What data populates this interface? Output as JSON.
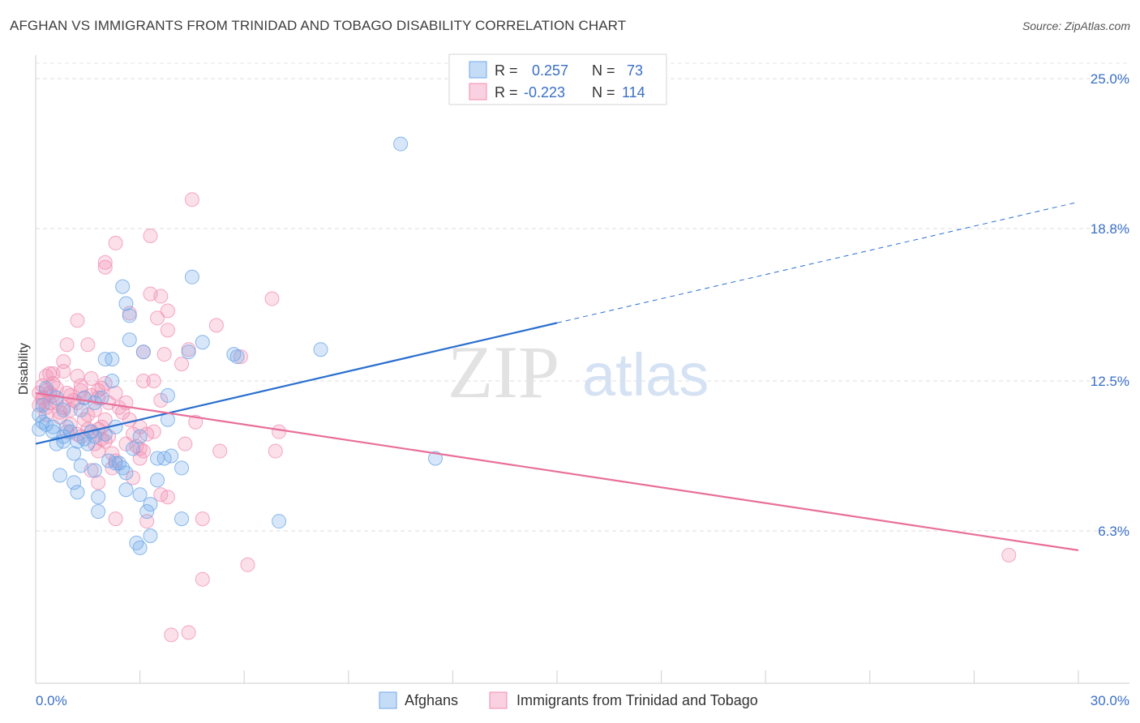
{
  "title": "AFGHAN VS IMMIGRANTS FROM TRINIDAD AND TOBAGO DISABILITY CORRELATION CHART",
  "source": "Source: ZipAtlas.com",
  "watermark": {
    "zip": "ZIP",
    "atlas": "atlas"
  },
  "legend": {
    "r_label": "R =",
    "n_label": "N =",
    "rows": [
      {
        "r": "0.257",
        "n": "73",
        "color": "#6ea8e8"
      },
      {
        "r": "-0.223",
        "n": "114",
        "color": "#f28cb1"
      }
    ]
  },
  "chart_data": {
    "type": "scatter",
    "title": "AFGHAN VS IMMIGRANTS FROM TRINIDAD AND TOBAGO DISABILITY CORRELATION CHART",
    "xlabel": "",
    "ylabel": "Disability",
    "xlim": [
      0,
      30
    ],
    "ylim": [
      0,
      25
    ],
    "x_tick_labels": [
      "0.0%",
      "30.0%"
    ],
    "y_ticks": [
      6.3,
      12.5,
      18.8,
      25.0
    ],
    "y_tick_labels": [
      "6.3%",
      "12.5%",
      "18.8%",
      "25.0%"
    ],
    "grid": true,
    "legend_position": "top-center",
    "series": [
      {
        "name": "Afghans",
        "color": "#6ea8e8",
        "line_color": "#2a6fcf",
        "r": 0.257,
        "n": 73,
        "trend": {
          "x0": 0,
          "y0": 9.9,
          "x1": 15,
          "y1": 14.9,
          "dash_to_x": 30,
          "dash_to_y": 19.9
        },
        "points": [
          [
            10.5,
            22.3
          ],
          [
            4.5,
            16.8
          ],
          [
            2.5,
            16.4
          ],
          [
            2.6,
            15.7
          ],
          [
            2.7,
            15.2
          ],
          [
            2.7,
            14.2
          ],
          [
            4.8,
            14.1
          ],
          [
            3.1,
            13.7
          ],
          [
            4.4,
            13.7
          ],
          [
            8.2,
            13.8
          ],
          [
            5.7,
            13.6
          ],
          [
            5.8,
            13.5
          ],
          [
            2.0,
            13.4
          ],
          [
            2.2,
            13.4
          ],
          [
            2.2,
            12.5
          ],
          [
            0.3,
            12.2
          ],
          [
            3.8,
            11.9
          ],
          [
            0.6,
            11.8
          ],
          [
            1.4,
            11.8
          ],
          [
            1.9,
            11.8
          ],
          [
            1.7,
            11.6
          ],
          [
            0.2,
            11.5
          ],
          [
            0.8,
            11.3
          ],
          [
            1.3,
            11.3
          ],
          [
            0.1,
            11.1
          ],
          [
            3.8,
            10.9
          ],
          [
            0.2,
            10.8
          ],
          [
            0.5,
            10.6
          ],
          [
            2.3,
            10.6
          ],
          [
            0.5,
            10.4
          ],
          [
            1.0,
            10.4
          ],
          [
            1.6,
            10.4
          ],
          [
            0.1,
            10.5
          ],
          [
            0.8,
            10.2
          ],
          [
            1.7,
            10.2
          ],
          [
            0.8,
            10.0
          ],
          [
            1.2,
            10.0
          ],
          [
            0.6,
            9.9
          ],
          [
            1.5,
            9.9
          ],
          [
            3.0,
            10.2
          ],
          [
            2.8,
            9.7
          ],
          [
            3.5,
            9.3
          ],
          [
            3.7,
            9.3
          ],
          [
            11.5,
            9.3
          ],
          [
            2.1,
            9.2
          ],
          [
            2.3,
            9.1
          ],
          [
            2.4,
            9.1
          ],
          [
            1.3,
            9.0
          ],
          [
            4.2,
            8.9
          ],
          [
            1.7,
            8.8
          ],
          [
            2.6,
            8.7
          ],
          [
            0.7,
            8.6
          ],
          [
            3.5,
            8.4
          ],
          [
            1.1,
            8.3
          ],
          [
            2.6,
            8.0
          ],
          [
            1.2,
            7.9
          ],
          [
            3.0,
            7.8
          ],
          [
            1.8,
            7.7
          ],
          [
            3.3,
            7.4
          ],
          [
            3.2,
            7.1
          ],
          [
            1.8,
            7.1
          ],
          [
            4.2,
            6.8
          ],
          [
            7.0,
            6.7
          ],
          [
            3.3,
            6.1
          ],
          [
            2.9,
            5.8
          ],
          [
            3.0,
            5.6
          ],
          [
            0.3,
            10.7
          ],
          [
            0.9,
            10.6
          ],
          [
            1.4,
            10.1
          ],
          [
            2.5,
            8.9
          ],
          [
            1.1,
            9.5
          ],
          [
            3.9,
            9.4
          ],
          [
            2.0,
            10.3
          ]
        ]
      },
      {
        "name": "Immigrants from Trinidad and Tobago",
        "color": "#f28cb1",
        "line_color": "#e86f9a",
        "r": -0.223,
        "n": 114,
        "trend": {
          "x0": 0,
          "y0": 12.0,
          "x1": 30,
          "y1": 5.5
        },
        "points": [
          [
            4.5,
            20.0
          ],
          [
            3.3,
            18.5
          ],
          [
            2.3,
            18.2
          ],
          [
            2.0,
            17.4
          ],
          [
            2.0,
            17.2
          ],
          [
            3.6,
            16.0
          ],
          [
            6.8,
            15.9
          ],
          [
            3.3,
            16.1
          ],
          [
            3.8,
            15.4
          ],
          [
            2.7,
            15.3
          ],
          [
            3.5,
            15.1
          ],
          [
            1.2,
            15.0
          ],
          [
            5.2,
            14.8
          ],
          [
            3.8,
            14.6
          ],
          [
            0.9,
            14.0
          ],
          [
            1.5,
            14.0
          ],
          [
            4.4,
            13.8
          ],
          [
            3.1,
            13.7
          ],
          [
            3.7,
            13.6
          ],
          [
            5.9,
            13.5
          ],
          [
            0.8,
            13.3
          ],
          [
            4.2,
            13.2
          ],
          [
            0.4,
            12.8
          ],
          [
            0.5,
            12.8
          ],
          [
            0.3,
            12.7
          ],
          [
            1.2,
            12.7
          ],
          [
            1.6,
            12.6
          ],
          [
            2.0,
            12.4
          ],
          [
            3.1,
            12.5
          ],
          [
            3.4,
            12.5
          ],
          [
            1.3,
            12.3
          ],
          [
            0.2,
            12.3
          ],
          [
            0.3,
            12.1
          ],
          [
            0.6,
            12.2
          ],
          [
            1.8,
            12.1
          ],
          [
            2.3,
            12.0
          ],
          [
            0.1,
            12.0
          ],
          [
            0.4,
            12.0
          ],
          [
            0.5,
            11.9
          ],
          [
            1.0,
            11.9
          ],
          [
            1.4,
            11.8
          ],
          [
            1.8,
            11.8
          ],
          [
            0.2,
            11.7
          ],
          [
            0.6,
            11.6
          ],
          [
            1.2,
            11.6
          ],
          [
            2.6,
            11.6
          ],
          [
            3.6,
            11.7
          ],
          [
            0.1,
            11.5
          ],
          [
            0.8,
            11.4
          ],
          [
            1.0,
            11.3
          ],
          [
            1.7,
            11.3
          ],
          [
            2.5,
            11.2
          ],
          [
            0.3,
            11.1
          ],
          [
            0.7,
            11.0
          ],
          [
            1.4,
            10.9
          ],
          [
            2.0,
            10.9
          ],
          [
            4.6,
            10.8
          ],
          [
            3.0,
            10.6
          ],
          [
            1.5,
            10.5
          ],
          [
            1.8,
            10.5
          ],
          [
            1.6,
            10.4
          ],
          [
            0.9,
            10.4
          ],
          [
            7.0,
            10.4
          ],
          [
            2.8,
            10.3
          ],
          [
            3.2,
            10.3
          ],
          [
            1.3,
            10.2
          ],
          [
            1.9,
            10.1
          ],
          [
            2.0,
            10.0
          ],
          [
            1.7,
            9.9
          ],
          [
            2.9,
            9.8
          ],
          [
            4.3,
            9.9
          ],
          [
            3.0,
            9.7
          ],
          [
            1.8,
            9.6
          ],
          [
            3.1,
            9.6
          ],
          [
            5.3,
            9.6
          ],
          [
            6.9,
            9.6
          ],
          [
            3.0,
            9.3
          ],
          [
            2.3,
            9.2
          ],
          [
            1.6,
            8.8
          ],
          [
            2.2,
            8.9
          ],
          [
            2.8,
            8.5
          ],
          [
            1.8,
            8.3
          ],
          [
            3.6,
            7.8
          ],
          [
            3.8,
            7.7
          ],
          [
            2.3,
            6.8
          ],
          [
            4.8,
            6.8
          ],
          [
            3.2,
            6.7
          ],
          [
            6.1,
            4.9
          ],
          [
            4.8,
            4.3
          ],
          [
            28.0,
            5.3
          ],
          [
            4.4,
            2.1
          ],
          [
            3.9,
            2.0
          ],
          [
            2.1,
            11.6
          ],
          [
            0.5,
            12.4
          ],
          [
            0.9,
            12.0
          ],
          [
            1.1,
            11.7
          ],
          [
            2.4,
            11.4
          ],
          [
            0.2,
            11.8
          ],
          [
            1.5,
            11.1
          ],
          [
            0.7,
            11.2
          ],
          [
            2.7,
            10.9
          ],
          [
            1.0,
            10.7
          ],
          [
            1.2,
            10.3
          ],
          [
            2.6,
            9.9
          ],
          [
            1.9,
            10.6
          ],
          [
            0.3,
            11.4
          ],
          [
            3.4,
            10.4
          ],
          [
            0.8,
            12.9
          ],
          [
            1.9,
            12.2
          ],
          [
            2.1,
            10.2
          ],
          [
            0.4,
            11.6
          ],
          [
            1.3,
            12.1
          ],
          [
            2.2,
            9.5
          ],
          [
            1.6,
            11.9
          ]
        ]
      }
    ]
  },
  "bottom_legend": [
    {
      "label": "Afghans",
      "color": "#6ea8e8"
    },
    {
      "label": "Immigrants from Trinidad and Tobago",
      "color": "#f28cb1"
    }
  ]
}
